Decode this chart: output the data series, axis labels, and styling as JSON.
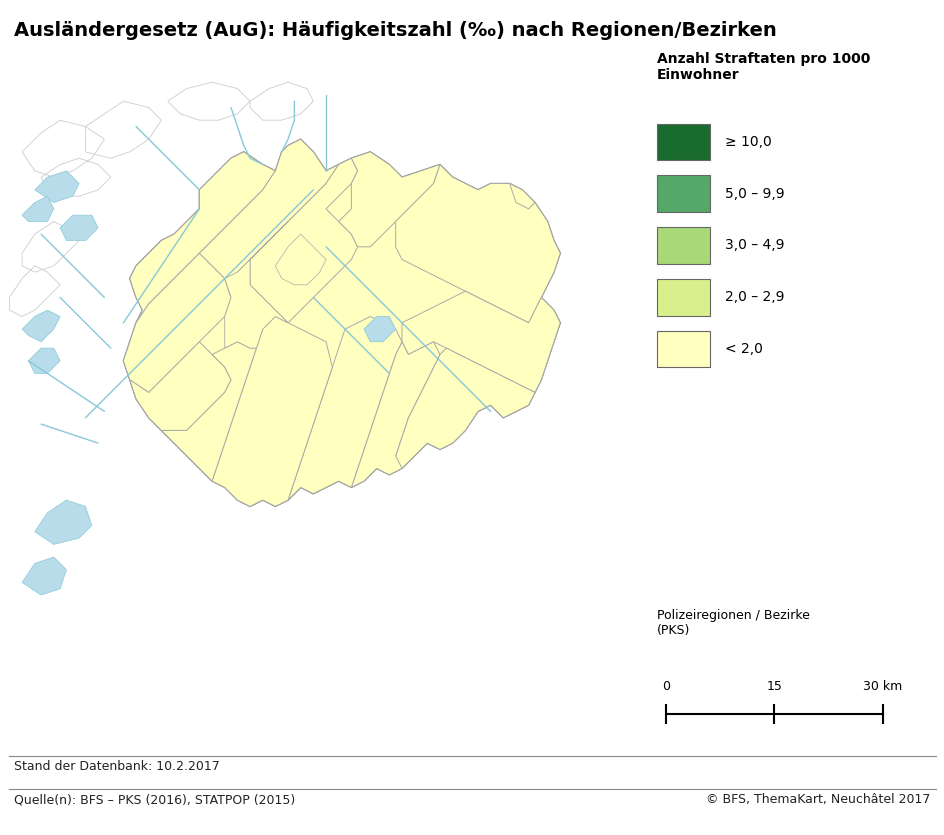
{
  "title": "Ausländergesetz (AuG): Häufigkeitszahl (‰) nach Regionen/Bezirken",
  "legend_title": "Anzahl Straftaten pro 1000\nEinwohner",
  "legend_labels": [
    "≥ 10,0",
    "5,0 – 9,9",
    "3,0 – 4,9",
    "2,0 – 2,9",
    "< 2,0"
  ],
  "legend_colors": [
    "#1a6b2e",
    "#55a868",
    "#a8d878",
    "#d9ef8b",
    "#ffffbf"
  ],
  "map_bg_color": "#ffffff",
  "water_color": "#b8dcea",
  "region_edge_color": "#777777",
  "district_edge_color": "#aaaaaa",
  "neighbor_edge_color": "#bbbbbb",
  "main_fill_color": "#ffffbf",
  "polizei_label": "Polizeiregionen / Bezirke\n(PKS)",
  "stand_text": "Stand der Datenbank: 10.2.2017",
  "quelle_text": "Quelle(n): BFS – PKS (2016), STATPOP (2015)",
  "copyright_text": "© BFS, ThemaKart, Neuchâtel 2017",
  "title_fontsize": 14,
  "legend_fontsize": 10,
  "footer_fontsize": 9
}
